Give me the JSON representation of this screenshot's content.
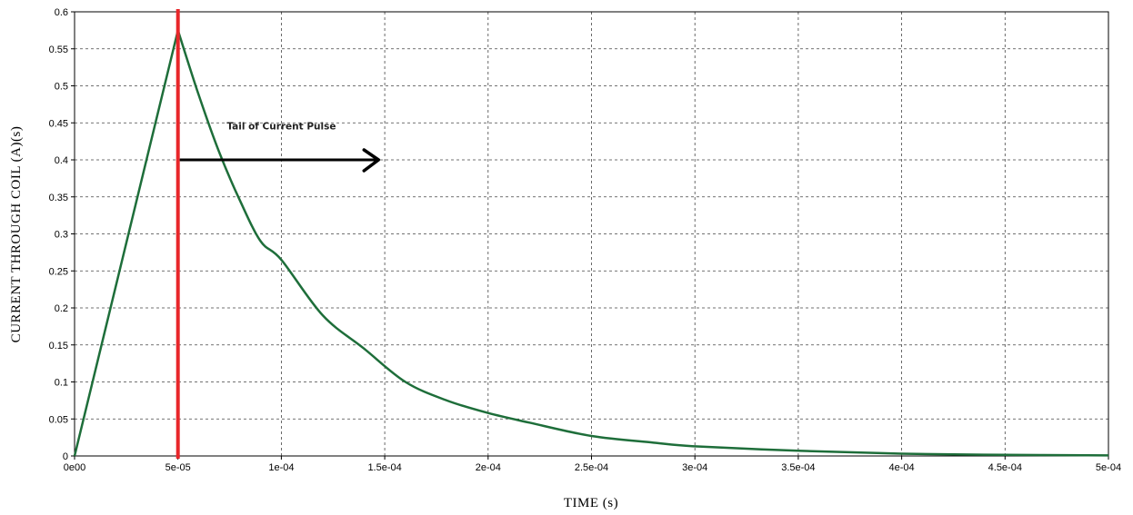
{
  "chart_data": {
    "type": "line",
    "title": "",
    "xlabel": "TIME (s)",
    "ylabel": "CURRENT THROUGH COIL (A)(s)",
    "xlim": [
      0,
      0.0005
    ],
    "ylim": [
      0,
      0.6
    ],
    "grid": true,
    "x_tick_labels": [
      "0e00",
      "5e-05",
      "1e-04",
      "1.5e-04",
      "2e-04",
      "2.5e-04",
      "3e-04",
      "3.5e-04",
      "4e-04",
      "4.5e-04",
      "5e-04"
    ],
    "x_ticks": [
      0,
      5e-05,
      0.0001,
      0.00015,
      0.0002,
      0.00025,
      0.0003,
      0.00035,
      0.0004,
      0.00045,
      0.0005
    ],
    "y_tick_labels": [
      "0",
      "0.05",
      "0.1",
      "0.15",
      "0.2",
      "0.25",
      "0.3",
      "0.35",
      "0.4",
      "0.45",
      "0.5",
      "0.55",
      "0.6"
    ],
    "y_ticks": [
      0,
      0.05,
      0.1,
      0.15,
      0.2,
      0.25,
      0.3,
      0.35,
      0.4,
      0.45,
      0.5,
      0.55,
      0.6
    ],
    "series": [
      {
        "color": "#1e6e3a",
        "x": [
          0,
          5e-05,
          6e-05,
          7e-05,
          8e-05,
          9e-05,
          0.0001,
          0.00012,
          0.00014,
          0.00016,
          0.00018,
          0.0002,
          0.00022,
          0.00025,
          0.00028,
          0.0003,
          0.00035,
          0.0004,
          0.00045,
          0.0005
        ],
        "y": [
          0,
          0.575,
          0.488,
          0.41,
          0.345,
          0.29,
          0.265,
          0.19,
          0.145,
          0.1,
          0.075,
          0.058,
          0.045,
          0.027,
          0.018,
          0.013,
          0.007,
          0.003,
          0.0015,
          0.0007
        ]
      }
    ],
    "vertical_marker": {
      "x": 5e-05,
      "color": "#e8262a"
    },
    "annotation": {
      "text": "Tail of Current Pulse",
      "x": 0.0001,
      "y": 0.445,
      "arrow": {
        "x_start": 5e-05,
        "x_end": 0.000147,
        "y": 0.4,
        "color": "#000000"
      }
    }
  }
}
